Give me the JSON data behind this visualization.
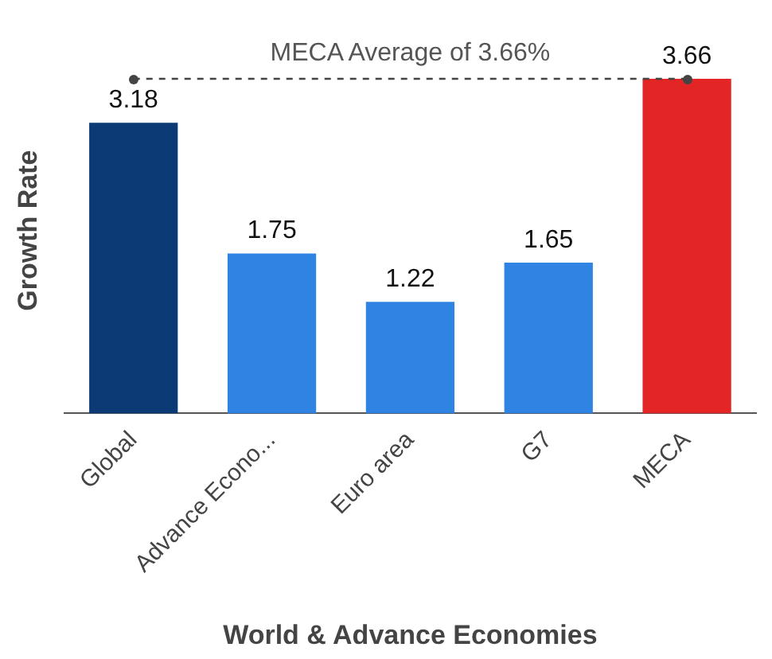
{
  "chart_data": {
    "type": "bar",
    "xlabel": "World & Advance Economies",
    "ylabel": "Growth Rate",
    "categories": [
      "Global",
      "Advance Econo...",
      "Euro area",
      "G7",
      "MECA"
    ],
    "values": [
      3.18,
      1.75,
      1.22,
      1.65,
      3.66
    ],
    "colors": [
      "#0b3a75",
      "#2f84e3",
      "#2f84e3",
      "#2f84e3",
      "#e32525"
    ],
    "data_labels": true,
    "ref_lines": [
      {
        "axis": "y",
        "value": 3.66,
        "label": "MECA Average of 3.66%",
        "color": "#444444",
        "line_style": "dashed"
      }
    ],
    "grid": false,
    "legend": false
  }
}
